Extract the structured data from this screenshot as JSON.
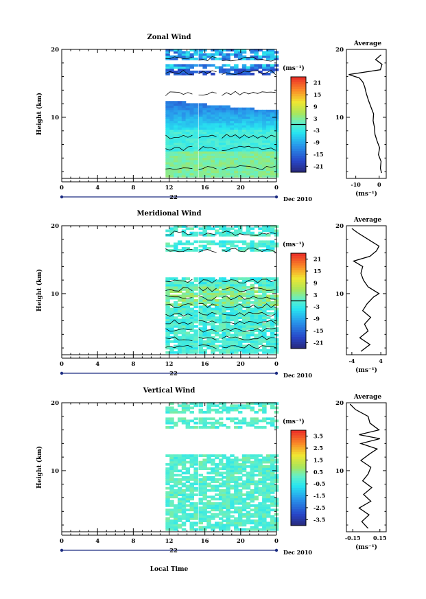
{
  "chart_data": [
    {
      "type": "heatmap",
      "title": "Zonal Wind",
      "ylabel": "Height (km)",
      "xlim": [
        0,
        24
      ],
      "ylim": [
        1,
        20
      ],
      "xticks": [
        "0",
        "4",
        "8",
        "12",
        "16",
        "20",
        "0"
      ],
      "yticks": [
        {
          "v": 10,
          "label": "10"
        },
        {
          "v": 20,
          "label": "20"
        }
      ],
      "date_center": "22",
      "date_right": "Dec 2010",
      "colorbar": {
        "unit": "(ms⁻¹)",
        "range": [
          -24,
          24
        ],
        "labels": [
          {
            "v": 21,
            "t": "21"
          },
          {
            "v": 15,
            "t": "15"
          },
          {
            "v": 9,
            "t": "9"
          },
          {
            "v": 3,
            "t": "3"
          },
          {
            "v": -3,
            "t": "-3"
          },
          {
            "v": -9,
            "t": "-9"
          },
          {
            "v": -15,
            "t": "-15"
          },
          {
            "v": -21,
            "t": "-21"
          }
        ],
        "zero_line": 0
      },
      "average": {
        "title": "Average",
        "unit": "(ms⁻¹)",
        "xlim": [
          -14,
          3
        ],
        "xticks": [
          {
            "v": -10,
            "t": "-10"
          },
          {
            "v": 0,
            "t": "0"
          }
        ],
        "heights": [
          1.8,
          2.5,
          3.5,
          4.5,
          5.5,
          6.5,
          7.5,
          8.5,
          9.5,
          10.5,
          11.5,
          12.5,
          13.5,
          14.5,
          15.2,
          15.8,
          16.3,
          17,
          17.8,
          18.5,
          19.2
        ],
        "values": [
          1.0,
          0.5,
          0.8,
          -0.3,
          0.2,
          -0.9,
          -1.8,
          -2.0,
          -2.6,
          -2.4,
          -3.5,
          -4.6,
          -5.5,
          -6.2,
          -7.0,
          -8.5,
          -13.0,
          0.5,
          1.2,
          -1.5,
          0.8
        ]
      }
    },
    {
      "type": "heatmap",
      "title": "Meridional Wind",
      "ylabel": "Height (km)",
      "xlim": [
        0,
        24
      ],
      "ylim": [
        1,
        20
      ],
      "xticks": [
        "0",
        "4",
        "8",
        "12",
        "16",
        "20",
        "0"
      ],
      "yticks": [
        {
          "v": 10,
          "label": "10"
        },
        {
          "v": 20,
          "label": "20"
        }
      ],
      "date_center": "22",
      "date_right": "Dec 2010",
      "colorbar": {
        "unit": "(ms⁻¹)",
        "range": [
          -24,
          24
        ],
        "labels": [
          {
            "v": 21,
            "t": "21"
          },
          {
            "v": 15,
            "t": "15"
          },
          {
            "v": 9,
            "t": "9"
          },
          {
            "v": 3,
            "t": "3"
          },
          {
            "v": -3,
            "t": "-3"
          },
          {
            "v": -9,
            "t": "-9"
          },
          {
            "v": -15,
            "t": "-15"
          },
          {
            "v": -21,
            "t": "-21"
          }
        ],
        "zero_line": 0
      },
      "average": {
        "title": "Average",
        "unit": "(ms⁻¹)",
        "xlim": [
          -5.5,
          5.5
        ],
        "xticks": [
          {
            "v": -4,
            "t": "-4"
          },
          {
            "v": 4,
            "t": "4"
          }
        ],
        "heights": [
          1.5,
          2.5,
          3.5,
          4.5,
          5.5,
          6.5,
          7.5,
          8.5,
          9.5,
          10.0,
          11.0,
          12.0,
          13.0,
          14.0,
          14.8,
          15.5,
          16.3,
          17.0,
          18.0,
          19.0,
          19.6
        ],
        "values": [
          -1.5,
          1.0,
          -1.8,
          0.5,
          -0.5,
          1.2,
          -1.0,
          0.2,
          2.0,
          3.5,
          0.5,
          -0.8,
          -1.5,
          -1.0,
          -3.5,
          1.0,
          2.8,
          3.5,
          0.5,
          -2.5,
          -4.0
        ]
      }
    },
    {
      "type": "heatmap",
      "title": "Vertical Wind",
      "ylabel": "Height (km)",
      "xlabel": "Local Time",
      "xlim": [
        0,
        24
      ],
      "ylim": [
        1,
        20
      ],
      "xticks": [
        "0",
        "4",
        "8",
        "12",
        "16",
        "20",
        "0"
      ],
      "yticks": [
        {
          "v": 10,
          "label": "10"
        },
        {
          "v": 20,
          "label": "20"
        }
      ],
      "date_center": "22",
      "date_right": "Dec 2010",
      "colorbar": {
        "unit": "(ms⁻¹)",
        "range": [
          -4,
          4
        ],
        "labels": [
          {
            "v": 3.5,
            "t": "3.5"
          },
          {
            "v": 2.5,
            "t": "2.5"
          },
          {
            "v": 1.5,
            "t": "1.5"
          },
          {
            "v": 0.5,
            "t": "0.5"
          },
          {
            "v": -0.5,
            "t": "-0.5"
          },
          {
            "v": -1.5,
            "t": "-1.5"
          },
          {
            "v": -2.5,
            "t": "-2.5"
          },
          {
            "v": -3.5,
            "t": "-3.5"
          }
        ],
        "zero_line": null
      },
      "average": {
        "title": "Average",
        "unit": "(ms⁻¹)",
        "xlim": [
          -0.22,
          0.22
        ],
        "xticks": [
          {
            "v": -0.15,
            "t": "-0.15"
          },
          {
            "v": 0.15,
            "t": "0.15"
          }
        ],
        "heights": [
          1.5,
          2.5,
          3.5,
          4.5,
          5.5,
          6.5,
          7.5,
          8.5,
          9.5,
          10.5,
          11.5,
          12.5,
          13.2,
          14.0,
          14.7,
          15.3,
          16.0,
          17.0,
          18.0,
          19.0,
          19.8
        ],
        "values": [
          0.02,
          -0.05,
          0.03,
          -0.08,
          0.05,
          -0.03,
          0.06,
          -0.04,
          0.02,
          0.05,
          -0.06,
          0.04,
          0.12,
          -0.06,
          0.15,
          -0.08,
          0.14,
          0.04,
          0.02,
          -0.12,
          -0.18
        ]
      }
    }
  ]
}
